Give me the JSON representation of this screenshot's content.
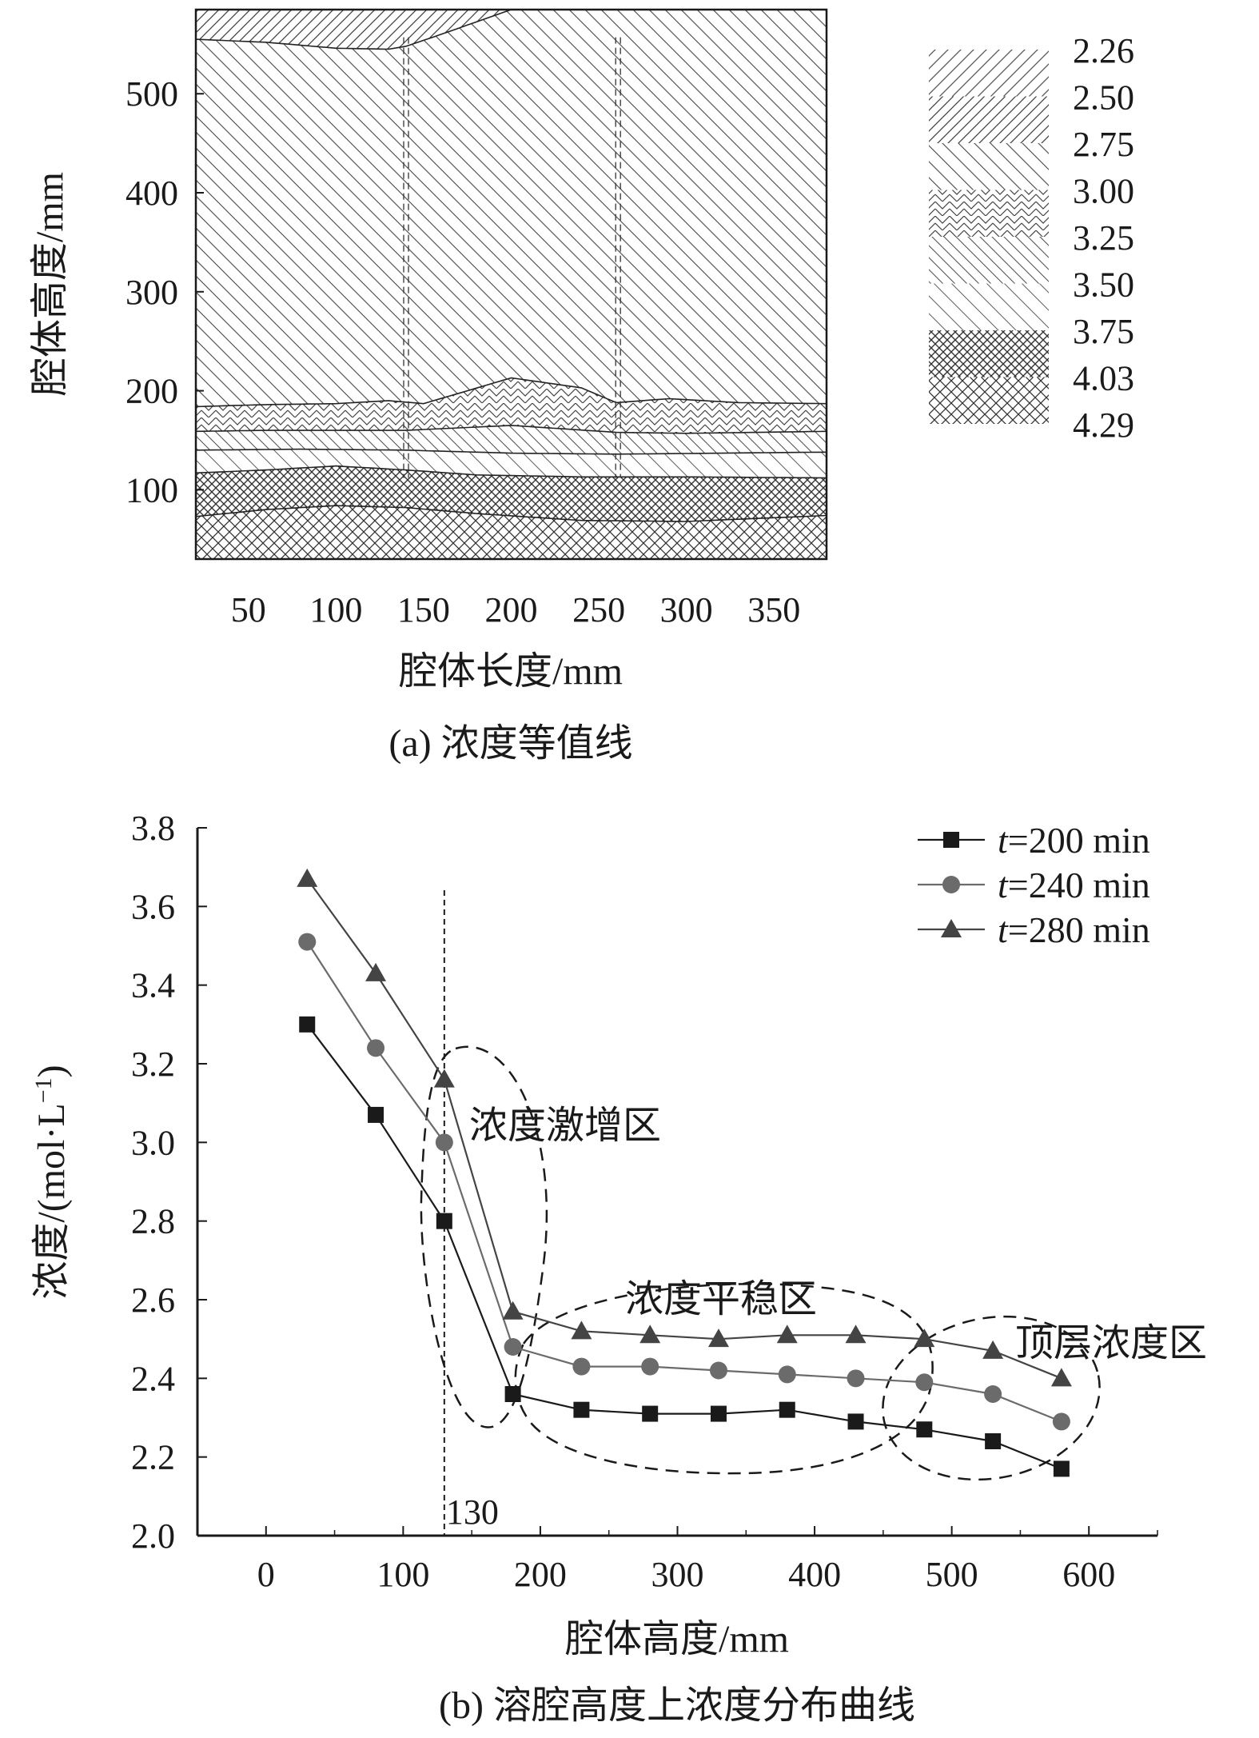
{
  "chart_data": [
    {
      "type": "heatmap",
      "caption": "(a) 浓度等值线",
      "xlabel": "腔体长度/mm",
      "ylabel": "腔体高度/mm",
      "xticks": [
        "50",
        "100",
        "150",
        "200",
        "250",
        "300",
        "350"
      ],
      "yticks": [
        "100",
        "200",
        "300",
        "400",
        "500"
      ],
      "xlim": [
        20,
        380
      ],
      "ylim": [
        30,
        585
      ],
      "legend_levels": [
        "2.26",
        "2.50",
        "2.75",
        "3.00",
        "3.25",
        "3.50",
        "3.75",
        "4.03",
        "4.29"
      ],
      "isolines": [
        {
          "x": [
            20,
            60,
            100,
            130,
            140,
            160,
            200,
            240,
            260,
            300,
            380
          ],
          "y": [
            555,
            552,
            546,
            545,
            548,
            560,
            585,
            585,
            585,
            585,
            585
          ]
        },
        {
          "x": [
            20,
            60,
            100,
            130,
            150,
            200,
            240,
            260,
            290,
            330,
            380
          ],
          "y": [
            184,
            186,
            187,
            190,
            187,
            213,
            203,
            188,
            192,
            188,
            187
          ]
        },
        {
          "x": [
            20,
            60,
            100,
            140,
            200,
            260,
            300,
            380
          ],
          "y": [
            159,
            160,
            160,
            160,
            165,
            158,
            157,
            159
          ]
        },
        {
          "x": [
            20,
            80,
            140,
            200,
            260,
            320,
            380
          ],
          "y": [
            140,
            141,
            140,
            137,
            136,
            137,
            138
          ]
        },
        {
          "x": [
            20,
            60,
            100,
            140,
            180,
            240,
            300,
            380
          ],
          "y": [
            117,
            120,
            124,
            120,
            115,
            113,
            113,
            112
          ]
        },
        {
          "x": [
            20,
            60,
            100,
            140,
            180,
            240,
            300,
            340,
            380
          ],
          "y": [
            73,
            80,
            84,
            82,
            76,
            69,
            68,
            71,
            74
          ]
        }
      ],
      "zones_bottom_to_top": [
        "4.29",
        "3.75",
        "3.50",
        "3.25",
        "3.00",
        "2.75",
        "2.50",
        "2.26"
      ],
      "dashed_x": [
        140,
        261
      ]
    },
    {
      "type": "line",
      "caption": "(b) 溶腔高度上浓度分布曲线",
      "xlabel": "腔体高度/mm",
      "ylabel": "浓度/(mol·L⁻¹)",
      "xticks": [
        "0",
        "100",
        "200",
        "300",
        "400",
        "500",
        "600"
      ],
      "yticks": [
        "2.0",
        "2.2",
        "2.4",
        "2.6",
        "2.8",
        "3.0",
        "3.2",
        "3.4",
        "3.6",
        "3.8"
      ],
      "xlim": [
        -50,
        650
      ],
      "ylim": [
        2.0,
        3.8
      ],
      "x": [
        30,
        80,
        130,
        180,
        230,
        280,
        330,
        380,
        430,
        480,
        530,
        580
      ],
      "series": [
        {
          "name": "t=200 min",
          "t": "t",
          "rest": "=200 min",
          "marker": "square",
          "values": [
            3.3,
            3.07,
            2.8,
            2.36,
            2.32,
            2.31,
            2.31,
            2.32,
            2.29,
            2.27,
            2.24,
            2.17
          ]
        },
        {
          "name": "t=240 min",
          "t": "t",
          "rest": "=240 min",
          "marker": "circle",
          "values": [
            3.51,
            3.24,
            3.0,
            2.48,
            2.43,
            2.43,
            2.42,
            2.41,
            2.4,
            2.39,
            2.36,
            2.29
          ]
        },
        {
          "name": "t=280 min",
          "t": "t",
          "rest": "=280 min",
          "marker": "triangle",
          "values": [
            3.67,
            3.43,
            3.16,
            2.57,
            2.52,
            2.51,
            2.5,
            2.51,
            2.51,
            2.5,
            2.47,
            2.4
          ]
        }
      ],
      "vline": {
        "x": 130,
        "label": "130"
      },
      "annotations": [
        "浓度激增区",
        "浓度平稳区",
        "顶层浓度区"
      ],
      "colors": {
        "t=200 min": "#1a1a1a",
        "t=240 min": "#6b6b6b",
        "t=280 min": "#444444"
      },
      "legend_placement": "top-right"
    }
  ]
}
